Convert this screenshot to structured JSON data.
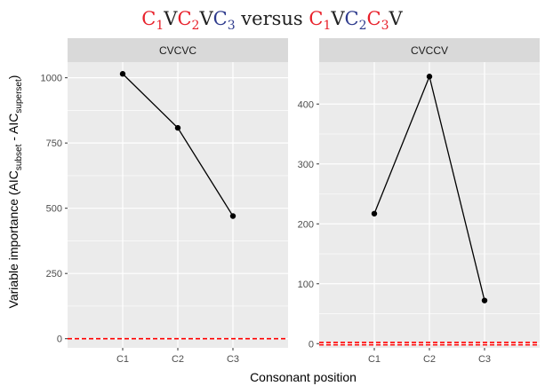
{
  "title": {
    "segments": [
      {
        "text": "C",
        "color": "#e8202a"
      },
      {
        "text": "1",
        "color": "#e8202a",
        "sub": true
      },
      {
        "text": "V",
        "color": "#222222"
      },
      {
        "text": "C",
        "color": "#e8202a"
      },
      {
        "text": "2",
        "color": "#e8202a",
        "sub": true
      },
      {
        "text": "V",
        "color": "#222222"
      },
      {
        "text": "C",
        "color": "#2d3a8c"
      },
      {
        "text": "3",
        "color": "#2d3a8c",
        "sub": true
      },
      {
        "text": " versus ",
        "color": "#222222"
      },
      {
        "text": "C",
        "color": "#e8202a"
      },
      {
        "text": "1",
        "color": "#e8202a",
        "sub": true
      },
      {
        "text": "V",
        "color": "#222222"
      },
      {
        "text": "C",
        "color": "#2d3a8c"
      },
      {
        "text": "2",
        "color": "#2d3a8c",
        "sub": true
      },
      {
        "text": "C",
        "color": "#e8202a"
      },
      {
        "text": "3",
        "color": "#e8202a",
        "sub": true
      },
      {
        "text": "V",
        "color": "#222222"
      }
    ]
  },
  "xlabel": "Consonant position",
  "ylabel": {
    "main": "Variable importance (AIC",
    "sub1": "subset",
    "mid": " -  AIC",
    "sub2": "superset",
    "end": ")"
  },
  "colors": {
    "panel_bg": "#ebebeb",
    "strip_bg": "#d9d9d9",
    "grid": "#ffffff",
    "line": "#000000",
    "reference": "#ff0000"
  },
  "chart_data": [
    {
      "type": "line",
      "facet": "CVCVC",
      "categories": [
        "C1",
        "C2",
        "C3"
      ],
      "values": [
        1015,
        808,
        470
      ],
      "ylim": [
        -35,
        1060
      ],
      "yticks": [
        0,
        250,
        500,
        750,
        1000
      ],
      "ytick_labels": [
        "0",
        "250",
        "500",
        "750",
        "1000"
      ],
      "reference_lines": [
        {
          "y": 0,
          "style": "dashed",
          "color": "#ff0000"
        }
      ],
      "grid": true
    },
    {
      "type": "line",
      "facet": "CVCCV",
      "categories": [
        "C1",
        "C2",
        "C3"
      ],
      "values": [
        217,
        446,
        72
      ],
      "ylim": [
        -7,
        470
      ],
      "yticks": [
        0,
        100,
        200,
        300,
        400
      ],
      "ytick_labels": [
        "0",
        "100",
        "200",
        "300",
        "400"
      ],
      "reference_lines": [
        {
          "y": -2,
          "style": "dashed",
          "color": "#ff0000"
        },
        {
          "y": 2,
          "style": "dashed",
          "color": "#ff0000"
        }
      ],
      "grid": true
    }
  ]
}
